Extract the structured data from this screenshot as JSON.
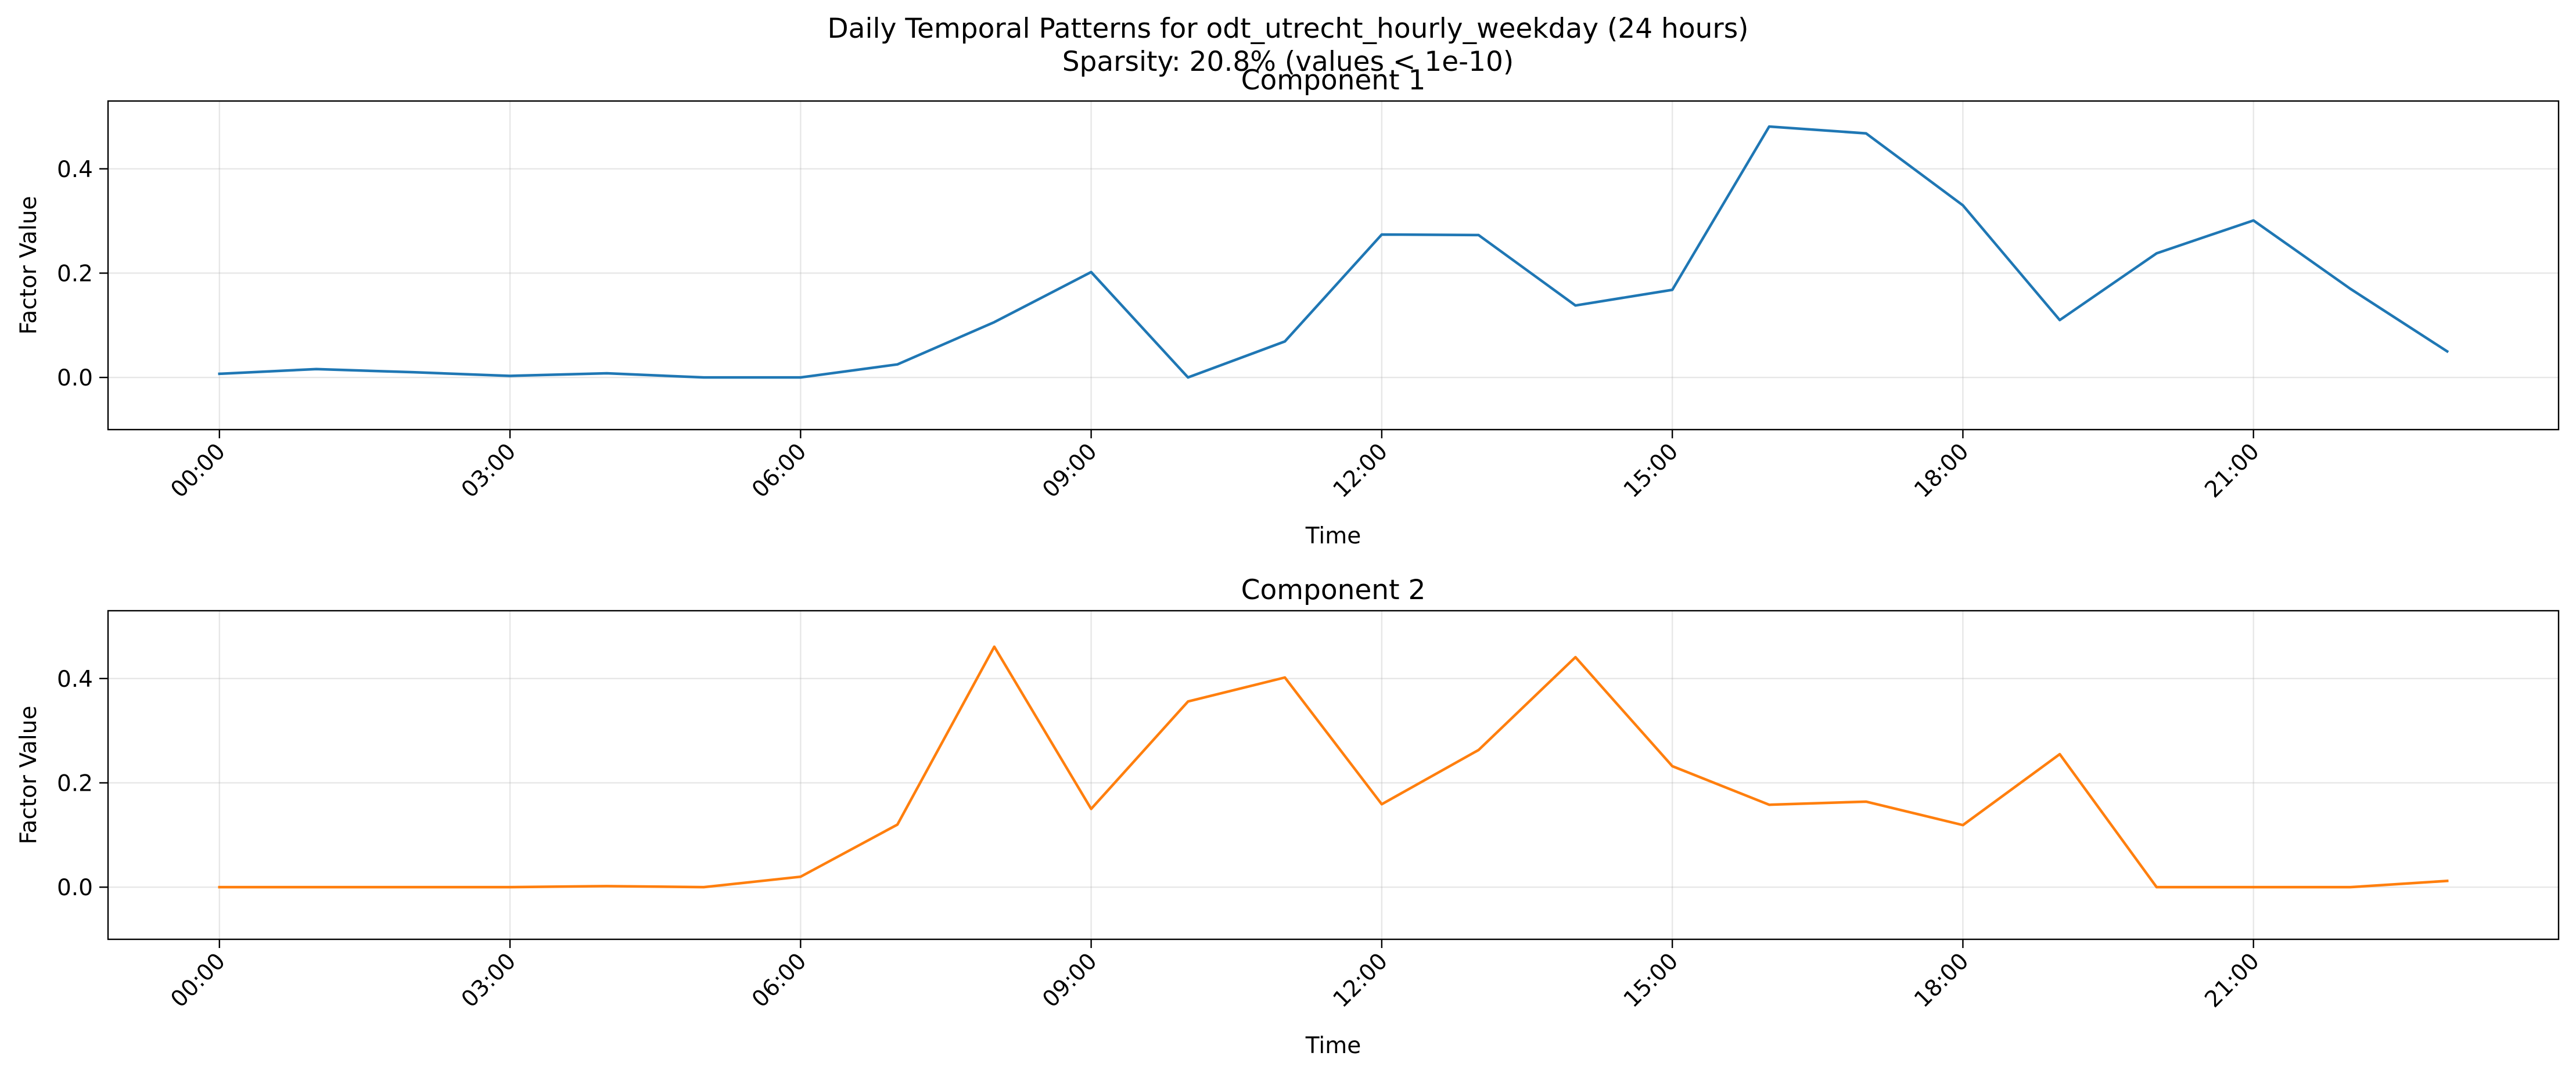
{
  "figure": {
    "title": "Daily Temporal Patterns for odt_utrecht_hourly_weekday (24 hours)",
    "subtitle": "Sparsity: 20.8% (values < 1e-10)"
  },
  "chart_data": [
    {
      "type": "line",
      "title": "Component 1",
      "xlabel": "Time",
      "ylabel": "Factor Value",
      "x": [
        "00:00",
        "01:00",
        "02:00",
        "03:00",
        "04:00",
        "05:00",
        "06:00",
        "07:00",
        "08:00",
        "09:00",
        "10:00",
        "11:00",
        "12:00",
        "13:00",
        "14:00",
        "15:00",
        "16:00",
        "17:00",
        "18:00",
        "19:00",
        "20:00",
        "21:00",
        "22:00",
        "23:00"
      ],
      "xticks": [
        "00:00",
        "03:00",
        "06:00",
        "09:00",
        "12:00",
        "15:00",
        "18:00",
        "21:00"
      ],
      "yticks": [
        "0.0",
        "0.2",
        "0.4"
      ],
      "ylim": [
        -0.1,
        0.53
      ],
      "xlim": [
        -1.15,
        24.15
      ],
      "grid": true,
      "color": "#1f77b4",
      "series": [
        {
          "values": [
            0.007,
            0.016,
            0.01,
            0.003,
            0.008,
            0.0,
            0.0,
            0.025,
            0.106,
            0.202,
            0.0,
            0.069,
            0.274,
            0.273,
            0.138,
            0.168,
            0.481,
            0.468,
            0.33,
            0.11,
            0.238,
            0.301,
            0.17,
            0.05
          ]
        }
      ]
    },
    {
      "type": "line",
      "title": "Component 2",
      "xlabel": "Time",
      "ylabel": "Factor Value",
      "x": [
        "00:00",
        "01:00",
        "02:00",
        "03:00",
        "04:00",
        "05:00",
        "06:00",
        "07:00",
        "08:00",
        "09:00",
        "10:00",
        "11:00",
        "12:00",
        "13:00",
        "14:00",
        "15:00",
        "16:00",
        "17:00",
        "18:00",
        "19:00",
        "20:00",
        "21:00",
        "22:00",
        "23:00"
      ],
      "xticks": [
        "00:00",
        "03:00",
        "06:00",
        "09:00",
        "12:00",
        "15:00",
        "18:00",
        "21:00"
      ],
      "yticks": [
        "0.0",
        "0.2",
        "0.4"
      ],
      "ylim": [
        -0.1,
        0.53
      ],
      "xlim": [
        -1.15,
        24.15
      ],
      "grid": true,
      "color": "#ff7f0e",
      "series": [
        {
          "values": [
            0.0,
            0.0,
            0.0,
            0.0,
            0.002,
            0.0,
            0.02,
            0.12,
            0.461,
            0.15,
            0.356,
            0.402,
            0.159,
            0.263,
            0.441,
            0.232,
            0.158,
            0.164,
            0.119,
            0.255,
            0.0,
            0.0,
            0.0,
            0.012
          ]
        }
      ]
    }
  ]
}
